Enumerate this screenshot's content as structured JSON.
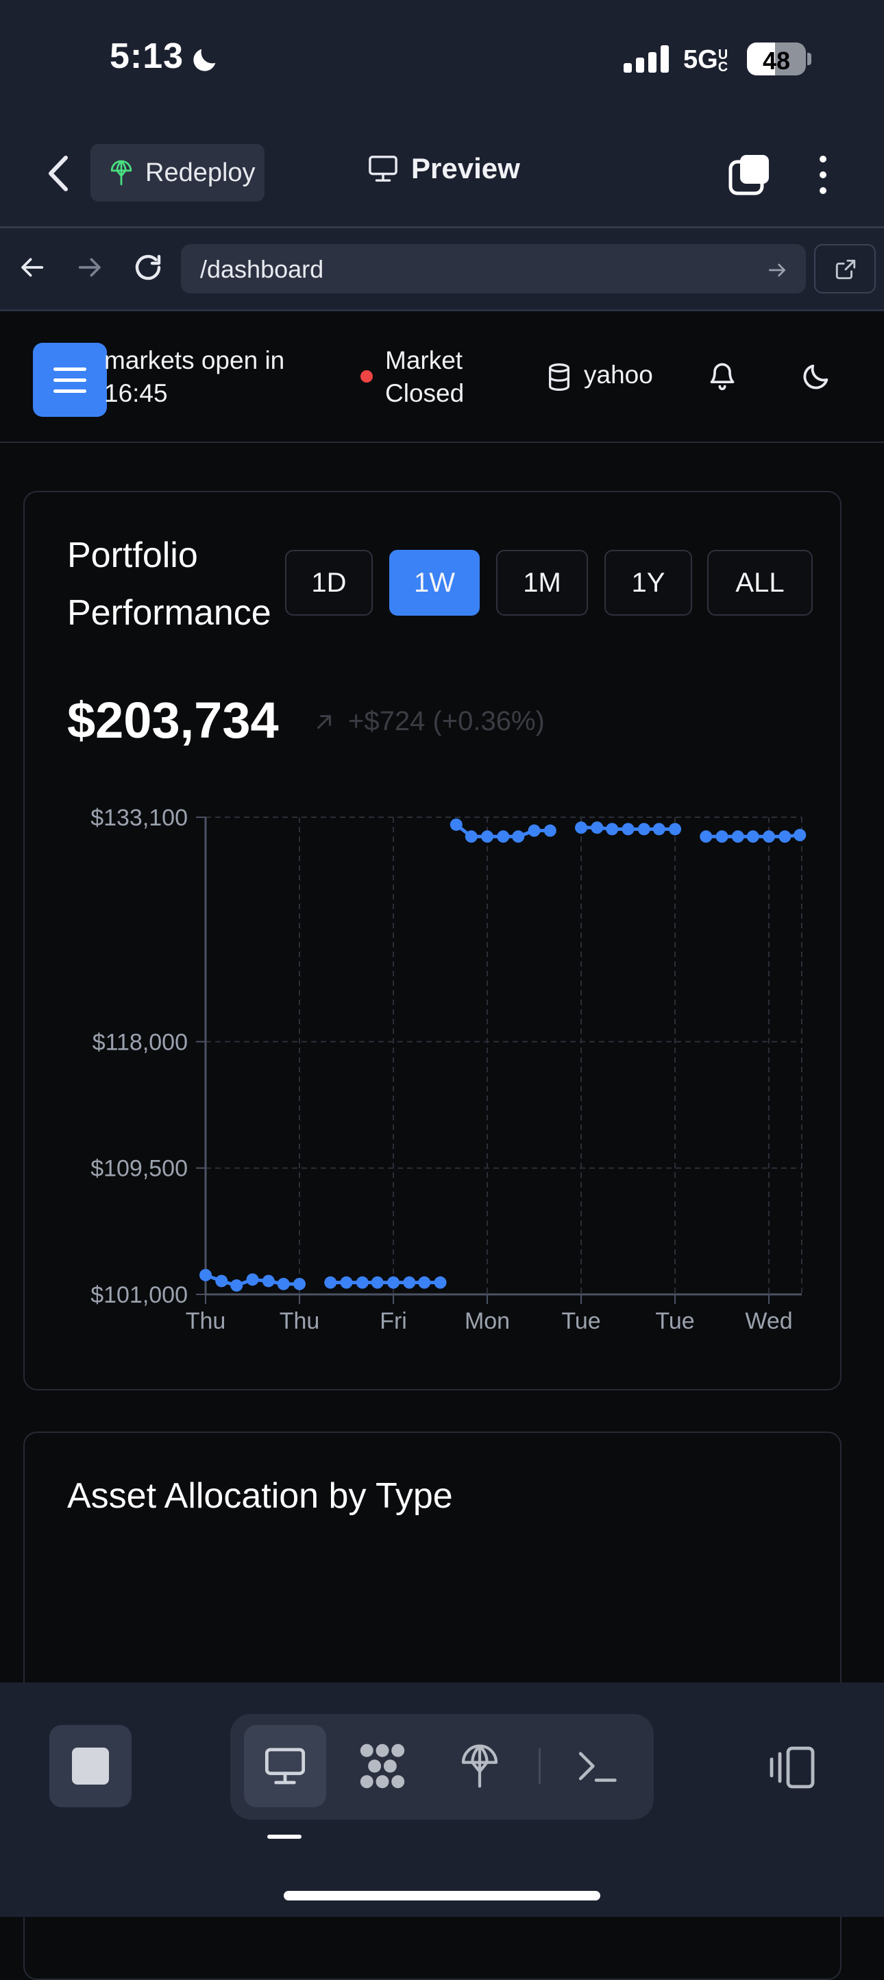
{
  "status_bar": {
    "time": "5:13",
    "network": "5G",
    "network_suffix": "UC",
    "battery": "48",
    "battery_level": 0.48
  },
  "app_bar": {
    "redeploy_label": "Redeploy",
    "title": "Preview"
  },
  "browser": {
    "url": "/dashboard"
  },
  "header": {
    "markets_open_text": "markets open in 16:45",
    "market_status": "Market Closed",
    "data_provider": "yahoo"
  },
  "portfolio": {
    "title": "Portfolio Performance",
    "ranges": [
      "1D",
      "1W",
      "1M",
      "1Y",
      "ALL"
    ],
    "active_range": "1W",
    "total_value": "$203,734",
    "change": "+$724 (+0.36%)"
  },
  "chart_data": {
    "type": "scatter",
    "title": "",
    "xlabel": "",
    "ylabel": "",
    "y_ticks": [
      "$133,100",
      "$118,000",
      "$109,500",
      "$101,000"
    ],
    "y_tick_values": [
      133100,
      118000,
      109500,
      101000
    ],
    "ylim": [
      101000,
      133100
    ],
    "x_tick_labels": [
      "Thu",
      "Thu",
      "Fri",
      "Mon",
      "Tue",
      "Tue",
      "Wed"
    ],
    "grid": true,
    "series": [
      {
        "color": "#3b82f6",
        "segments": [
          {
            "x": [
              0,
              0.17,
              0.33,
              0.5,
              0.67,
              0.83,
              1.0
            ],
            "y": [
              102300,
              101900,
              101600,
              102000,
              101900,
              101700,
              101700
            ]
          },
          {
            "x": [
              1.33,
              1.5,
              1.67,
              1.83,
              2.0,
              2.17,
              2.33,
              2.5
            ],
            "y": [
              101800,
              101800,
              101800,
              101800,
              101800,
              101800,
              101800,
              101800
            ]
          },
          {
            "x": [
              2.67,
              2.83,
              3.0,
              3.17,
              3.33,
              3.5,
              3.67
            ],
            "y": [
              132600,
              131800,
              131800,
              131800,
              131800,
              132200,
              132200
            ]
          },
          {
            "x": [
              4.0,
              4.17,
              4.33,
              4.5,
              4.67,
              4.83,
              5.0
            ],
            "y": [
              132400,
              132400,
              132300,
              132300,
              132300,
              132300,
              132300
            ]
          },
          {
            "x": [
              5.33,
              5.5,
              5.67,
              5.83,
              6.0,
              6.17,
              6.33
            ],
            "y": [
              131800,
              131800,
              131800,
              131800,
              131800,
              131800,
              131900
            ]
          }
        ]
      }
    ]
  },
  "allocation": {
    "title": "Asset Allocation by Type"
  }
}
